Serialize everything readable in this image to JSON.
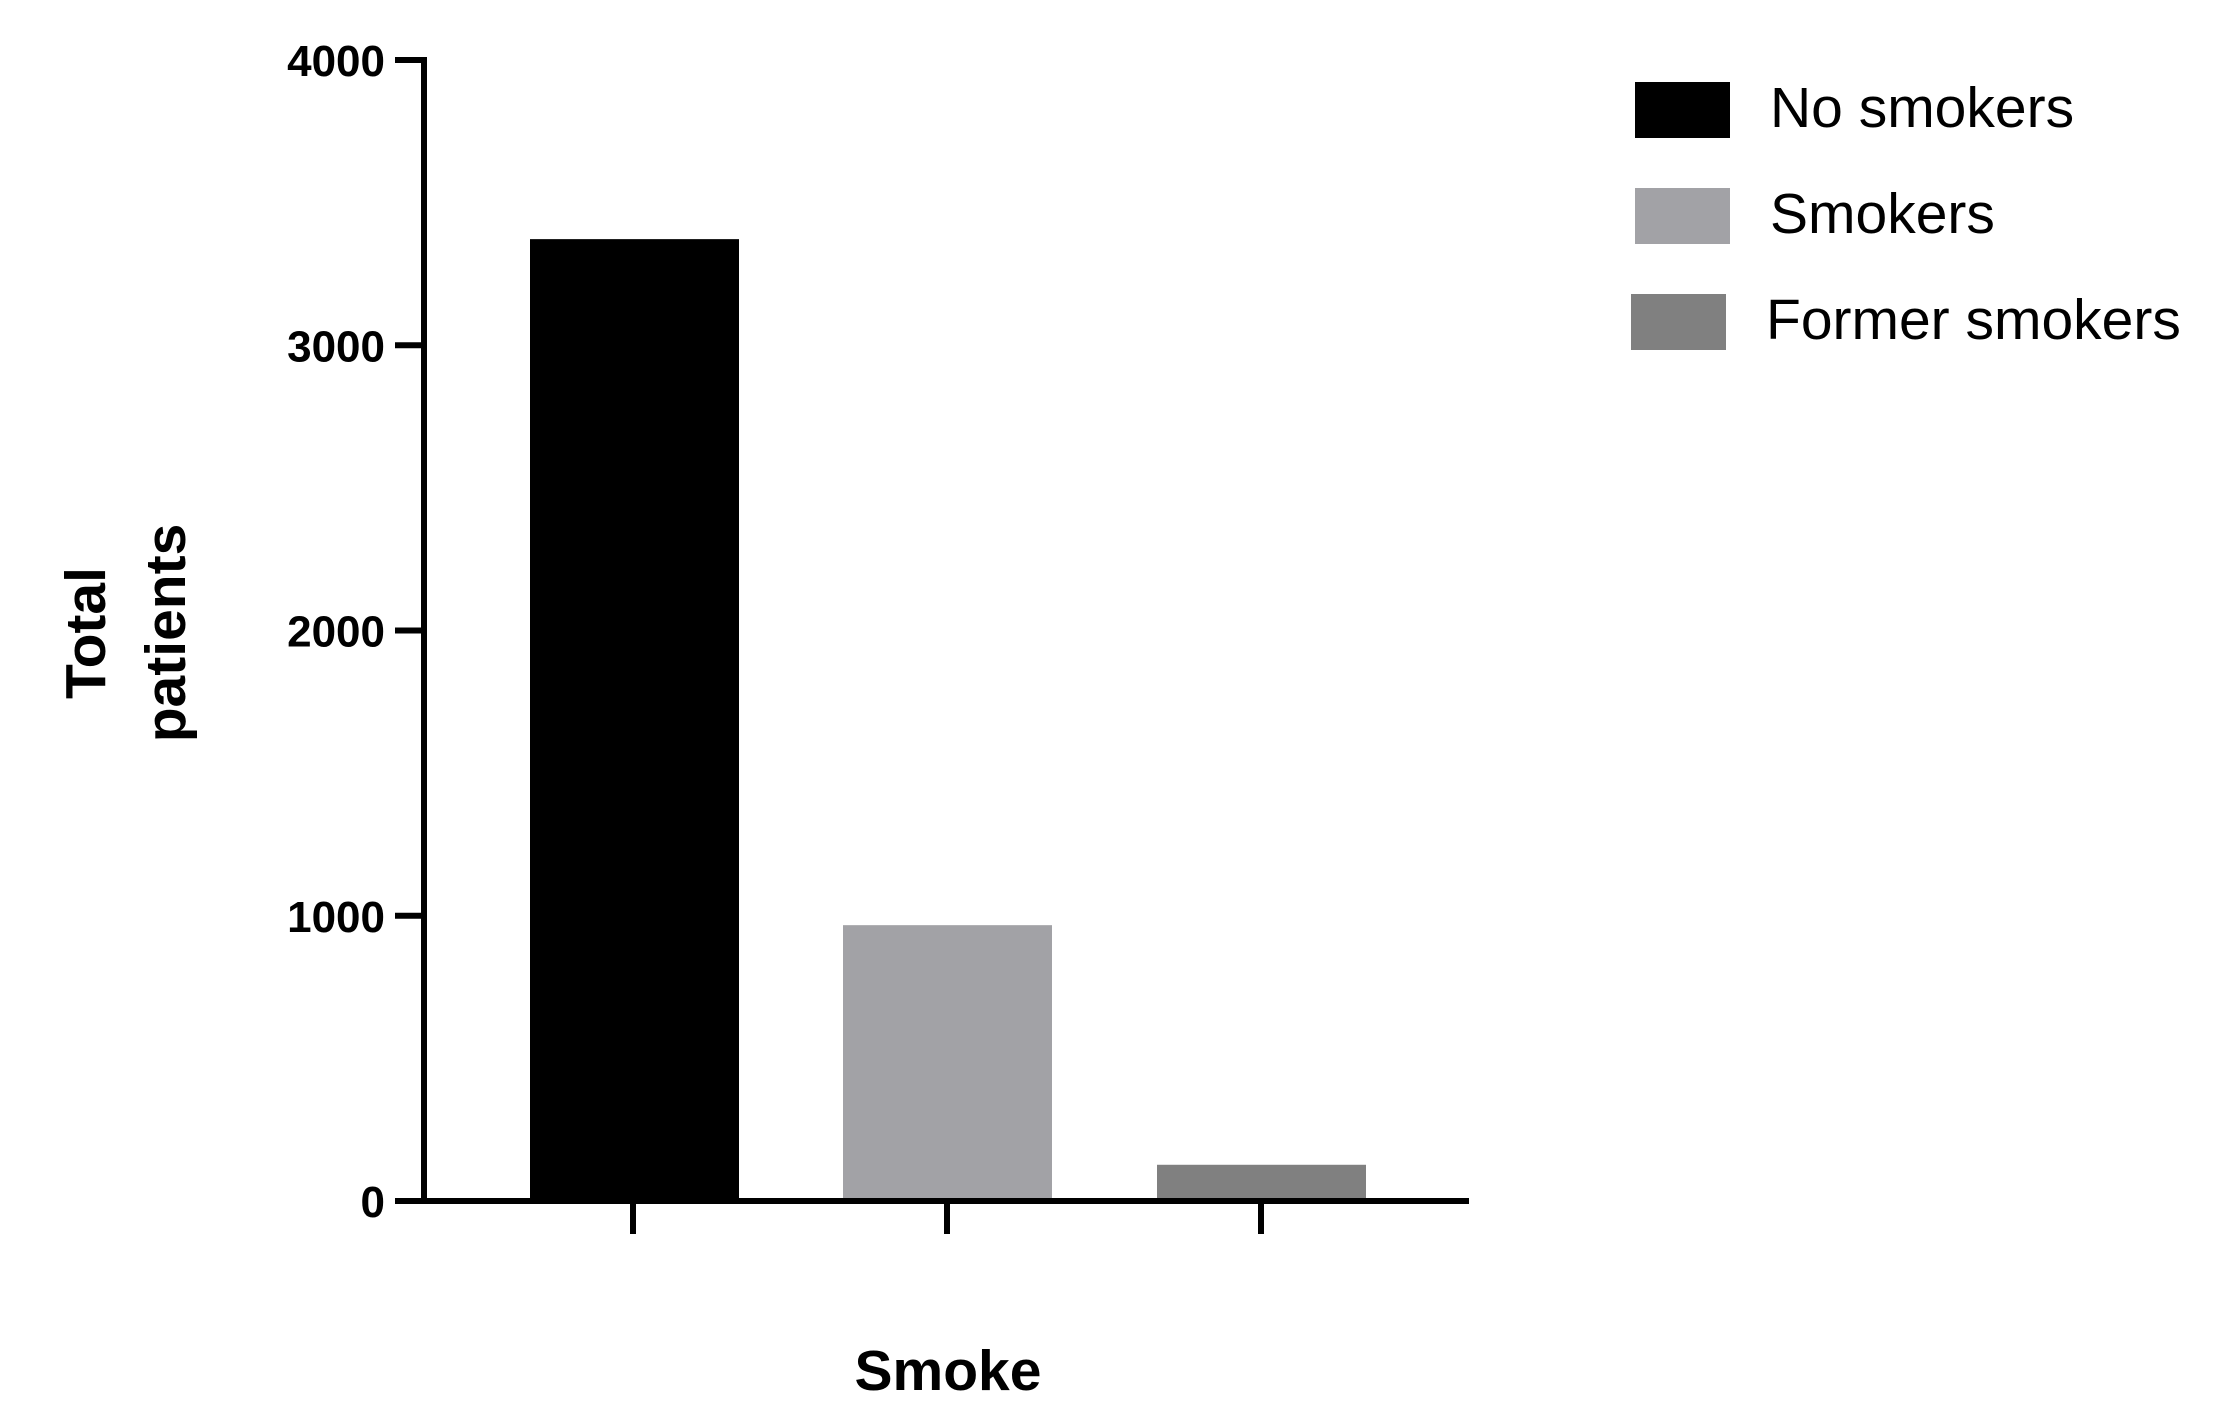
{
  "chart_data": {
    "type": "bar",
    "title": "",
    "xlabel": "Smoke",
    "ylabel": [
      "Total",
      "patients"
    ],
    "ylim": [
      0,
      4000
    ],
    "yticks": [
      "0",
      "1000",
      "2000",
      "3000",
      "4000"
    ],
    "grid": false,
    "legend_position": "top-right",
    "series": [
      {
        "name": "No smokers",
        "value": 3372,
        "color": "#000000"
      },
      {
        "name": "Smokers",
        "value": 967,
        "color": "#a2a2a6"
      },
      {
        "name": "Former smokers",
        "value": 127,
        "color": "#808080"
      }
    ]
  }
}
